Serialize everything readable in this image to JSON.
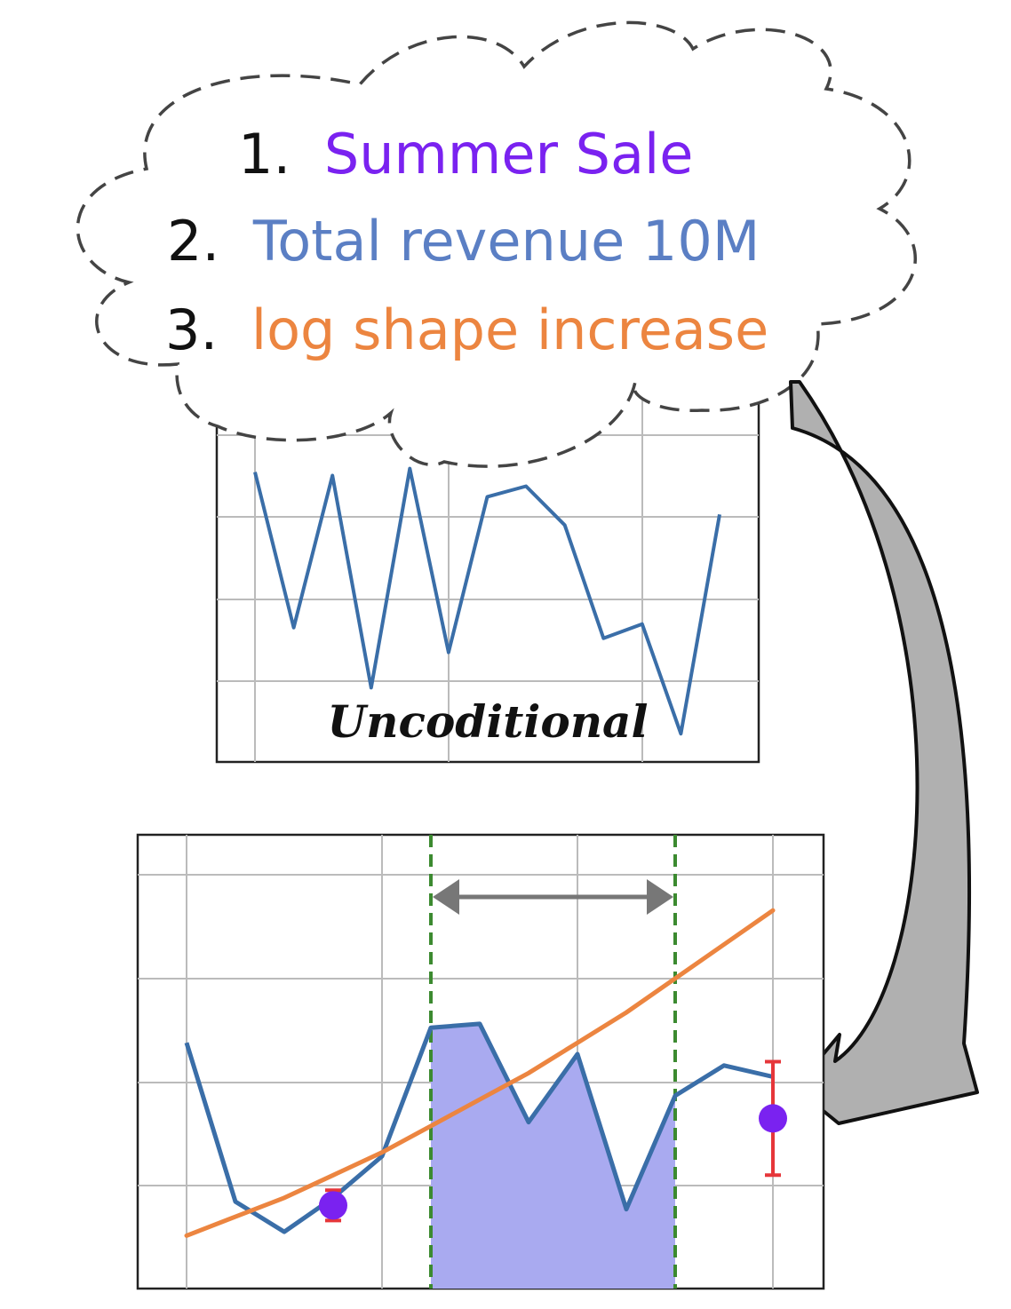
{
  "cloud": {
    "items": [
      {
        "number": "1.",
        "text": "Summer Sale",
        "color": "#7a22f0"
      },
      {
        "number": "2.",
        "text": "Total revenue 10M",
        "color": "#5b7fc4"
      },
      {
        "number": "3.",
        "text": "log shape increase",
        "color": "#ec8540"
      }
    ]
  },
  "unconditional": {
    "label": "Uncoditional",
    "series": [
      0.82,
      0.38,
      0.81,
      0.21,
      0.83,
      0.31,
      0.75,
      0.78,
      0.67,
      0.35,
      0.39,
      0.08,
      0.7
    ],
    "ylim": [
      0,
      1.05
    ],
    "line_color": "#3a6ea8"
  },
  "conditional": {
    "series": [
      0.55,
      0.13,
      0.05,
      0.14,
      0.25,
      0.59,
      0.6,
      0.34,
      0.52,
      0.11,
      0.41,
      0.49,
      0.46
    ],
    "trend": [
      0.04,
      0.09,
      0.14,
      0.2,
      0.26,
      0.33,
      0.4,
      0.47,
      0.55,
      0.63,
      0.72,
      0.81,
      0.9
    ],
    "ylim": [
      -0.1,
      1.1
    ],
    "highlight_range": [
      5,
      10
    ],
    "point_markers": [
      {
        "x": 3,
        "y": 0.12,
        "error": 0.04
      },
      {
        "x": 12,
        "y": 0.35,
        "error": 0.15
      }
    ],
    "line_color": "#3a6ea8",
    "trend_color": "#ec8540",
    "fill_color": "#a9aaf0",
    "marker_color": "#7a22f0",
    "error_color": "#e6363a",
    "window_color": "#3c8a30"
  }
}
